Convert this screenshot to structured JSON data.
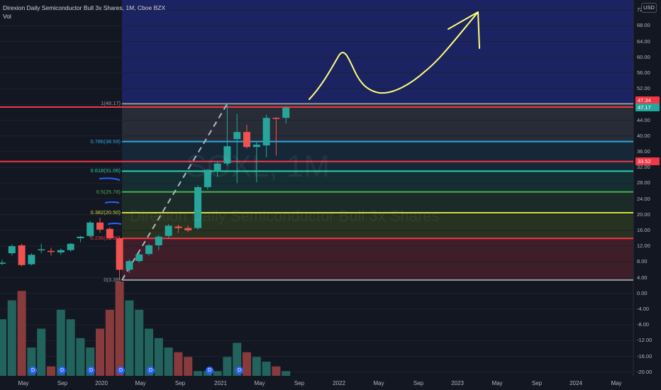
{
  "header": {
    "title": "Direxion Daily Semiconductor Bull 3x Shares, 1M, Cboe BZX",
    "indicator": "Vol"
  },
  "currency": "USD",
  "watermark": {
    "ticker": "SOXL, 1M",
    "name": "Direxion Daily Semiconductor Bull 3x Shares"
  },
  "y_axis": {
    "ticks": [
      "72.00",
      "68.00",
      "64.00",
      "60.00",
      "56.00",
      "52.00",
      "48.00",
      "44.00",
      "40.00",
      "36.00",
      "32.00",
      "28.00",
      "24.00",
      "20.00",
      "16.00",
      "12.00",
      "8.00",
      "4.00",
      "0.00",
      "-4.00",
      "-8.00",
      "-12.00",
      "-16.00",
      "-20.00"
    ]
  },
  "x_axis": {
    "labels": [
      "May",
      "Sep",
      "2020",
      "May",
      "Sep",
      "2021",
      "May",
      "Sep",
      "2022",
      "May",
      "Sep",
      "2023",
      "May",
      "Sep",
      "2024",
      "May"
    ]
  },
  "price_badges": [
    {
      "text": "47.34",
      "color": "#f23645"
    },
    {
      "text": "47.17",
      "color": "#26a69a"
    },
    {
      "text": "33.52",
      "color": "#f23645"
    }
  ],
  "fib_levels": [
    {
      "label": "1(48.17)",
      "price": 48.17,
      "color": "#9598a1"
    },
    {
      "label": "0.786(38.59)",
      "price": 38.59,
      "color": "#29a8e0"
    },
    {
      "label": "0.618(31.06)",
      "price": 31.06,
      "color": "#22d3b0"
    },
    {
      "label": "0.5(25.78)",
      "price": 25.78,
      "color": "#4caf50"
    },
    {
      "label": "0.382(20.50)",
      "price": 20.5,
      "color": "#cddc39"
    },
    {
      "label": "0.236(13.96)",
      "price": 13.96,
      "color": "#f23645"
    },
    {
      "label": "0(3.39)",
      "price": 3.39,
      "color": "#9598a1"
    }
  ],
  "horizontal_lines": [
    {
      "price": 47.34,
      "color": "#f23645"
    },
    {
      "price": 33.52,
      "color": "#f23645"
    }
  ],
  "dividend_marker": "D",
  "colors": {
    "background": "#131722",
    "projection_zone": "#1b2362",
    "up": "#26a69a",
    "down": "#ef5350",
    "vol_up": "#22645d",
    "vol_down": "#883b3c",
    "drawing": "#ffff7a"
  },
  "chart_data": {
    "type": "candlestick",
    "interval": "1M",
    "candles": [
      {
        "o": 7.5,
        "h": 8.5,
        "l": 7.2,
        "c": 7.8
      },
      {
        "o": 10.2,
        "h": 12.4,
        "l": 9.6,
        "c": 12.0
      },
      {
        "o": 12.2,
        "h": 12.6,
        "l": 6.9,
        "c": 7.2
      },
      {
        "o": 7.4,
        "h": 10.2,
        "l": 7.1,
        "c": 9.8
      },
      {
        "o": 11.0,
        "h": 12.6,
        "l": 10.2,
        "c": 11.2
      },
      {
        "o": 10.8,
        "h": 11.6,
        "l": 9.6,
        "c": 10.6
      },
      {
        "o": 10.4,
        "h": 11.4,
        "l": 9.8,
        "c": 11.0
      },
      {
        "o": 11.0,
        "h": 12.8,
        "l": 10.6,
        "c": 12.6
      },
      {
        "o": 14.0,
        "h": 14.6,
        "l": 13.0,
        "c": 14.4
      },
      {
        "o": 14.6,
        "h": 18.4,
        "l": 14.2,
        "c": 18.0
      },
      {
        "o": 18.0,
        "h": 19.2,
        "l": 15.4,
        "c": 16.2
      },
      {
        "o": 16.4,
        "h": 16.8,
        "l": 13.6,
        "c": 14.0
      },
      {
        "o": 14.0,
        "h": 14.4,
        "l": 3.39,
        "c": 6.0
      },
      {
        "o": 6.0,
        "h": 8.6,
        "l": 5.2,
        "c": 8.2
      },
      {
        "o": 8.2,
        "h": 10.6,
        "l": 7.8,
        "c": 9.9
      },
      {
        "o": 10.0,
        "h": 12.6,
        "l": 9.6,
        "c": 12.2
      },
      {
        "o": 12.2,
        "h": 14.8,
        "l": 11.0,
        "c": 14.4
      },
      {
        "o": 14.6,
        "h": 17.6,
        "l": 14.0,
        "c": 17.2
      },
      {
        "o": 17.0,
        "h": 17.4,
        "l": 15.4,
        "c": 16.6
      },
      {
        "o": 16.6,
        "h": 17.2,
        "l": 15.6,
        "c": 16.0
      },
      {
        "o": 16.6,
        "h": 27.4,
        "l": 16.2,
        "c": 27.0
      },
      {
        "o": 27.0,
        "h": 31.6,
        "l": 26.4,
        "c": 31.4
      },
      {
        "o": 31.0,
        "h": 33.6,
        "l": 29.6,
        "c": 33.0
      },
      {
        "o": 33.0,
        "h": 48.17,
        "l": 32.4,
        "c": 37.4
      },
      {
        "o": 39.2,
        "h": 45.6,
        "l": 28.0,
        "c": 41.0
      },
      {
        "o": 41.0,
        "h": 42.8,
        "l": 36.8,
        "c": 37.2
      },
      {
        "o": 37.2,
        "h": 38.6,
        "l": 28.2,
        "c": 37.8
      },
      {
        "o": 37.6,
        "h": 45.4,
        "l": 34.6,
        "c": 44.6
      },
      {
        "o": 44.6,
        "h": 44.8,
        "l": 35.0,
        "c": 44.4
      },
      {
        "o": 44.6,
        "h": 47.6,
        "l": 43.2,
        "c": 47.17
      }
    ],
    "volume_levels": [
      6,
      8,
      9,
      3,
      5,
      1,
      7,
      6,
      4,
      3,
      5,
      7,
      10,
      8,
      7,
      5,
      4,
      3,
      2.5,
      2,
      0.5,
      0.5,
      0.5,
      2,
      3.5,
      2.5,
      2,
      1.5,
      1,
      0.5
    ],
    "y_range": [
      -20,
      72
    ],
    "fib_retracement": {
      "from": 3.39,
      "to": 48.17
    },
    "horizontal_lines": [
      47.34,
      33.52
    ]
  }
}
